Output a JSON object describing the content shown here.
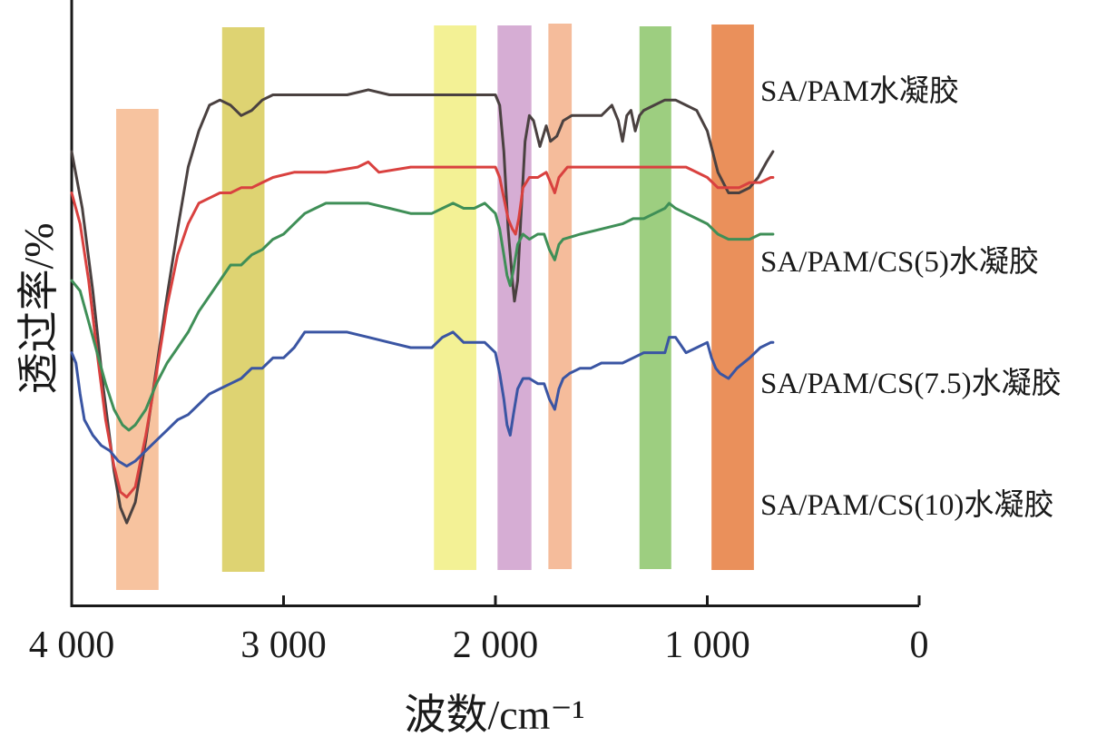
{
  "chart_data": {
    "type": "line",
    "xlabel": "波数/cm⁻¹",
    "ylabel": "透过率/%",
    "xlim": [
      4000,
      0
    ],
    "x_reversed": true,
    "xticks": [
      {
        "value": 4000,
        "label": "4 000"
      },
      {
        "value": 3000,
        "label": "3 000"
      },
      {
        "value": 2000,
        "label": "2 000"
      },
      {
        "value": 1000,
        "label": "1 000"
      },
      {
        "value": 0,
        "label": "0"
      }
    ],
    "highlight_bands": [
      {
        "from": 3790,
        "to": 3590,
        "color": "#f6b98e",
        "opacity": 0.85
      },
      {
        "from": 3290,
        "to": 3090,
        "color": "#d8cb59",
        "opacity": 0.85
      },
      {
        "from": 2290,
        "to": 2090,
        "color": "#f1ef82",
        "opacity": 0.85
      },
      {
        "from": 1990,
        "to": 1830,
        "color": "#cf9fcc",
        "opacity": 0.85
      },
      {
        "from": 1750,
        "to": 1640,
        "color": "#f3b08a",
        "opacity": 0.85
      },
      {
        "from": 1320,
        "to": 1170,
        "color": "#8cc56a",
        "opacity": 0.85
      },
      {
        "from": 980,
        "to": 780,
        "color": "#e67d3e",
        "opacity": 0.85
      }
    ],
    "series": [
      {
        "name": "SA/PAM水凝胶",
        "color": "#4a4140",
        "points": [
          [
            4000,
            60
          ],
          [
            3950,
            49
          ],
          [
            3900,
            33
          ],
          [
            3850,
            14
          ],
          [
            3800,
            -2
          ],
          [
            3770,
            -9
          ],
          [
            3740,
            -12
          ],
          [
            3700,
            -8
          ],
          [
            3650,
            4
          ],
          [
            3600,
            18
          ],
          [
            3550,
            32
          ],
          [
            3500,
            45
          ],
          [
            3450,
            57
          ],
          [
            3400,
            64
          ],
          [
            3350,
            69
          ],
          [
            3300,
            70
          ],
          [
            3250,
            69
          ],
          [
            3200,
            67
          ],
          [
            3150,
            68
          ],
          [
            3100,
            70
          ],
          [
            3050,
            71
          ],
          [
            2900,
            71
          ],
          [
            2700,
            71
          ],
          [
            2600,
            72
          ],
          [
            2500,
            71
          ],
          [
            2300,
            71
          ],
          [
            2100,
            71
          ],
          [
            2000,
            71
          ],
          [
            1980,
            69
          ],
          [
            1960,
            60
          ],
          [
            1940,
            45
          ],
          [
            1920,
            35
          ],
          [
            1910,
            31
          ],
          [
            1895,
            35
          ],
          [
            1880,
            47
          ],
          [
            1860,
            62
          ],
          [
            1840,
            67
          ],
          [
            1820,
            66
          ],
          [
            1790,
            61
          ],
          [
            1760,
            65
          ],
          [
            1740,
            62
          ],
          [
            1710,
            63
          ],
          [
            1680,
            66
          ],
          [
            1640,
            67
          ],
          [
            1600,
            67
          ],
          [
            1500,
            67
          ],
          [
            1450,
            69
          ],
          [
            1420,
            66
          ],
          [
            1400,
            62
          ],
          [
            1380,
            67
          ],
          [
            1360,
            68
          ],
          [
            1340,
            64
          ],
          [
            1320,
            67
          ],
          [
            1300,
            68
          ],
          [
            1250,
            69
          ],
          [
            1200,
            70
          ],
          [
            1150,
            70
          ],
          [
            1100,
            69
          ],
          [
            1050,
            68
          ],
          [
            1000,
            64
          ],
          [
            950,
            56
          ],
          [
            900,
            52
          ],
          [
            850,
            52
          ],
          [
            800,
            53
          ],
          [
            760,
            55
          ],
          [
            720,
            58
          ],
          [
            690,
            60
          ]
        ]
      },
      {
        "name": "SA/PAM/CS(5)水凝胶",
        "color": "#d9413f",
        "points": [
          [
            4000,
            52
          ],
          [
            3960,
            46
          ],
          [
            3920,
            35
          ],
          [
            3880,
            21
          ],
          [
            3840,
            8
          ],
          [
            3800,
            -1
          ],
          [
            3770,
            -6
          ],
          [
            3740,
            -7
          ],
          [
            3700,
            -5
          ],
          [
            3650,
            5
          ],
          [
            3600,
            17
          ],
          [
            3550,
            30
          ],
          [
            3500,
            40
          ],
          [
            3450,
            46
          ],
          [
            3400,
            50
          ],
          [
            3350,
            51
          ],
          [
            3300,
            52
          ],
          [
            3250,
            52
          ],
          [
            3200,
            53
          ],
          [
            3150,
            53
          ],
          [
            3100,
            54
          ],
          [
            3050,
            55
          ],
          [
            2950,
            56
          ],
          [
            2800,
            56
          ],
          [
            2650,
            57
          ],
          [
            2600,
            58
          ],
          [
            2550,
            56
          ],
          [
            2400,
            57
          ],
          [
            2300,
            57
          ],
          [
            2200,
            57
          ],
          [
            2100,
            57
          ],
          [
            2000,
            57
          ],
          [
            1980,
            55
          ],
          [
            1960,
            51
          ],
          [
            1940,
            47
          ],
          [
            1920,
            45
          ],
          [
            1905,
            44
          ],
          [
            1890,
            47
          ],
          [
            1870,
            53
          ],
          [
            1840,
            55
          ],
          [
            1800,
            55
          ],
          [
            1760,
            56
          ],
          [
            1740,
            54
          ],
          [
            1720,
            52
          ],
          [
            1700,
            55
          ],
          [
            1660,
            57
          ],
          [
            1600,
            57
          ],
          [
            1500,
            57
          ],
          [
            1400,
            57
          ],
          [
            1300,
            57
          ],
          [
            1200,
            57
          ],
          [
            1100,
            57
          ],
          [
            1000,
            55
          ],
          [
            950,
            53
          ],
          [
            900,
            53
          ],
          [
            850,
            53
          ],
          [
            800,
            54
          ],
          [
            750,
            54
          ],
          [
            700,
            55
          ],
          [
            690,
            55
          ]
        ]
      },
      {
        "name": "SA/PAM/CS(7.5)水凝胶",
        "color": "#3f8f57",
        "points": [
          [
            4000,
            35
          ],
          [
            3960,
            33
          ],
          [
            3920,
            27
          ],
          [
            3880,
            21
          ],
          [
            3840,
            15
          ],
          [
            3800,
            10
          ],
          [
            3760,
            7
          ],
          [
            3730,
            6
          ],
          [
            3700,
            7
          ],
          [
            3650,
            10
          ],
          [
            3600,
            15
          ],
          [
            3550,
            19
          ],
          [
            3500,
            22
          ],
          [
            3450,
            25
          ],
          [
            3400,
            29
          ],
          [
            3350,
            32
          ],
          [
            3300,
            35
          ],
          [
            3250,
            38
          ],
          [
            3200,
            38
          ],
          [
            3150,
            40
          ],
          [
            3100,
            41
          ],
          [
            3050,
            43
          ],
          [
            3000,
            44
          ],
          [
            2950,
            46
          ],
          [
            2900,
            48
          ],
          [
            2850,
            49
          ],
          [
            2800,
            50
          ],
          [
            2700,
            50
          ],
          [
            2600,
            50
          ],
          [
            2500,
            49
          ],
          [
            2400,
            48
          ],
          [
            2300,
            48
          ],
          [
            2250,
            49
          ],
          [
            2200,
            50
          ],
          [
            2150,
            49
          ],
          [
            2100,
            49
          ],
          [
            2050,
            50
          ],
          [
            2000,
            48
          ],
          [
            1980,
            45
          ],
          [
            1960,
            40
          ],
          [
            1945,
            36
          ],
          [
            1930,
            34
          ],
          [
            1915,
            37
          ],
          [
            1895,
            42
          ],
          [
            1870,
            44
          ],
          [
            1840,
            43
          ],
          [
            1800,
            44
          ],
          [
            1770,
            44
          ],
          [
            1745,
            41
          ],
          [
            1720,
            39
          ],
          [
            1700,
            42
          ],
          [
            1680,
            43
          ],
          [
            1600,
            44
          ],
          [
            1500,
            45
          ],
          [
            1400,
            46
          ],
          [
            1350,
            47
          ],
          [
            1300,
            47
          ],
          [
            1250,
            48
          ],
          [
            1200,
            49
          ],
          [
            1180,
            50
          ],
          [
            1150,
            49
          ],
          [
            1100,
            48
          ],
          [
            1050,
            47
          ],
          [
            1000,
            46
          ],
          [
            950,
            44
          ],
          [
            900,
            43
          ],
          [
            850,
            43
          ],
          [
            800,
            43
          ],
          [
            750,
            44
          ],
          [
            700,
            44
          ],
          [
            690,
            44
          ]
        ]
      },
      {
        "name": "SA/PAM/CS(10)水凝胶",
        "color": "#3a55a3",
        "points": [
          [
            4000,
            21
          ],
          [
            3980,
            19
          ],
          [
            3960,
            13
          ],
          [
            3940,
            8
          ],
          [
            3900,
            5
          ],
          [
            3860,
            3
          ],
          [
            3820,
            2
          ],
          [
            3780,
            0
          ],
          [
            3740,
            -1
          ],
          [
            3700,
            0
          ],
          [
            3650,
            2
          ],
          [
            3600,
            4
          ],
          [
            3550,
            6
          ],
          [
            3500,
            8
          ],
          [
            3450,
            9
          ],
          [
            3400,
            11
          ],
          [
            3350,
            13
          ],
          [
            3300,
            14
          ],
          [
            3250,
            15
          ],
          [
            3200,
            16
          ],
          [
            3150,
            18
          ],
          [
            3100,
            18
          ],
          [
            3050,
            20
          ],
          [
            3000,
            20
          ],
          [
            2950,
            22
          ],
          [
            2900,
            25
          ],
          [
            2850,
            25
          ],
          [
            2800,
            25
          ],
          [
            2700,
            25
          ],
          [
            2600,
            24
          ],
          [
            2500,
            23
          ],
          [
            2400,
            22
          ],
          [
            2300,
            22
          ],
          [
            2250,
            24
          ],
          [
            2200,
            25
          ],
          [
            2150,
            23
          ],
          [
            2100,
            23
          ],
          [
            2050,
            23
          ],
          [
            2000,
            21
          ],
          [
            1980,
            17
          ],
          [
            1960,
            12
          ],
          [
            1945,
            7
          ],
          [
            1930,
            5
          ],
          [
            1915,
            9
          ],
          [
            1895,
            14
          ],
          [
            1870,
            16
          ],
          [
            1840,
            16
          ],
          [
            1800,
            15
          ],
          [
            1770,
            15
          ],
          [
            1745,
            12
          ],
          [
            1720,
            10
          ],
          [
            1700,
            14
          ],
          [
            1680,
            16
          ],
          [
            1650,
            17
          ],
          [
            1600,
            18
          ],
          [
            1550,
            18
          ],
          [
            1500,
            19
          ],
          [
            1450,
            19
          ],
          [
            1400,
            19
          ],
          [
            1350,
            20
          ],
          [
            1300,
            21
          ],
          [
            1250,
            21
          ],
          [
            1200,
            21
          ],
          [
            1180,
            24
          ],
          [
            1150,
            24
          ],
          [
            1100,
            21
          ],
          [
            1050,
            22
          ],
          [
            1000,
            23
          ],
          [
            980,
            20
          ],
          [
            960,
            18
          ],
          [
            940,
            17
          ],
          [
            900,
            16
          ],
          [
            860,
            18
          ],
          [
            800,
            20
          ],
          [
            750,
            22
          ],
          [
            700,
            23
          ],
          [
            690,
            23
          ]
        ]
      }
    ],
    "y_domain": [
      -25,
      85
    ]
  }
}
